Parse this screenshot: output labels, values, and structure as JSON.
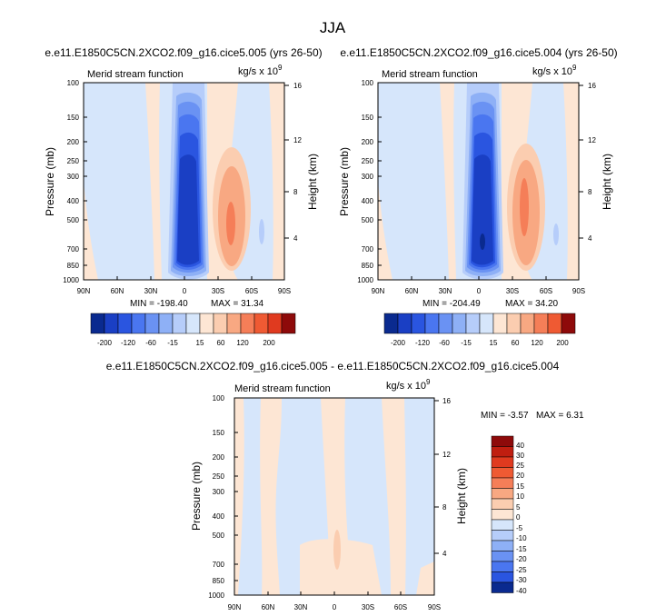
{
  "page_title": "JJA",
  "colors": {
    "blue_scale": [
      "#0a2a8f",
      "#1a3fc4",
      "#2a55e0",
      "#4a76f0",
      "#6a92f3",
      "#8eb0f6",
      "#b6cdfa",
      "#d6e6fb"
    ],
    "red_scale": [
      "#fde6d4",
      "#fbcdb0",
      "#f8a882",
      "#f57e58",
      "#ef5a33",
      "#e03a1f",
      "#c01e10",
      "#8e0a0a"
    ],
    "background_field": "#d6e6fb"
  },
  "chart_data": [
    {
      "type": "heatmap",
      "panel": "left",
      "title": "e.e11.E1850C5CN.2XCO2.f09_g16.cice5.005 (yrs 26-50)",
      "field_label": "Merid stream function",
      "units_text": "kg/s x 10",
      "units_exp": "9",
      "ylabel": "Pressure (mb)",
      "ylabel_right": "Height (km)",
      "x_ticks": [
        "90N",
        "60N",
        "30N",
        "0",
        "30S",
        "60S",
        "90S"
      ],
      "xlim": [
        90,
        -90
      ],
      "y_ticks": [
        "100",
        "150",
        "200",
        "250",
        "300",
        "400",
        "500",
        "700",
        "850",
        "1000"
      ],
      "ylim": [
        1000,
        100
      ],
      "y_scale": "log",
      "height_ticks": [
        "16",
        "12",
        "8",
        "4"
      ],
      "min_text": "MIN = -198.40",
      "max_text": "MAX = 31.34",
      "min": -198.4,
      "max": 31.34,
      "colorbar": {
        "orientation": "horizontal",
        "levels": [
          -200,
          -180,
          -160,
          -140,
          -120,
          -100,
          -80,
          -60,
          -40,
          -15,
          15,
          40,
          60,
          80,
          100,
          120,
          140,
          160,
          180,
          200
        ],
        "tick_labels": [
          "-200",
          "-120",
          "-60",
          "-15",
          "15",
          "60",
          "120",
          "200"
        ]
      }
    },
    {
      "type": "heatmap",
      "panel": "right",
      "title": "e.e11.E1850C5CN.2XCO2.f09_g16.cice5.004 (yrs 26-50)",
      "field_label": "Merid stream function",
      "units_text": "kg/s x 10",
      "units_exp": "9",
      "ylabel": "Pressure (mb)",
      "ylabel_right": "Height (km)",
      "x_ticks": [
        "90N",
        "60N",
        "30N",
        "0",
        "30S",
        "60S",
        "90S"
      ],
      "xlim": [
        90,
        -90
      ],
      "y_ticks": [
        "100",
        "150",
        "200",
        "250",
        "300",
        "400",
        "500",
        "700",
        "850",
        "1000"
      ],
      "ylim": [
        1000,
        100
      ],
      "y_scale": "log",
      "height_ticks": [
        "16",
        "12",
        "8",
        "4"
      ],
      "min_text": "MIN = -204.49",
      "max_text": "MAX = 34.20",
      "min": -204.49,
      "max": 34.2,
      "colorbar": {
        "orientation": "horizontal",
        "levels": [
          -200,
          -180,
          -160,
          -140,
          -120,
          -100,
          -80,
          -60,
          -40,
          -15,
          15,
          40,
          60,
          80,
          100,
          120,
          140,
          160,
          180,
          200
        ],
        "tick_labels": [
          "-200",
          "-120",
          "-60",
          "-15",
          "15",
          "60",
          "120",
          "200"
        ]
      }
    },
    {
      "type": "heatmap",
      "panel": "difference",
      "title": "e.e11.E1850C5CN.2XCO2.f09_g16.cice5.005 - e.e11.E1850C5CN.2XCO2.f09_g16.cice5.004",
      "field_label": "Merid stream function",
      "units_text": "kg/s x 10",
      "units_exp": "9",
      "ylabel": "Pressure (mb)",
      "ylabel_right": "Height (km)",
      "x_ticks": [
        "90N",
        "60N",
        "30N",
        "0",
        "30S",
        "60S",
        "90S"
      ],
      "xlim": [
        90,
        -90
      ],
      "y_ticks": [
        "100",
        "150",
        "200",
        "250",
        "300",
        "400",
        "500",
        "700",
        "850",
        "1000"
      ],
      "ylim": [
        1000,
        100
      ],
      "y_scale": "log",
      "height_ticks": [
        "16",
        "12",
        "8",
        "4"
      ],
      "min_text": "MIN = -3.57",
      "max_text": "MAX = 6.31",
      "min": -3.57,
      "max": 6.31,
      "colorbar": {
        "orientation": "vertical",
        "levels": [
          40,
          30,
          25,
          20,
          15,
          10,
          5,
          0,
          -5,
          -10,
          -15,
          -20,
          -25,
          -30,
          -40
        ],
        "tick_labels": [
          "40",
          "30",
          "25",
          "20",
          "15",
          "10",
          "5",
          "0",
          "-5",
          "-10",
          "-15",
          "-20",
          "-25",
          "-30",
          "-40"
        ]
      }
    }
  ]
}
